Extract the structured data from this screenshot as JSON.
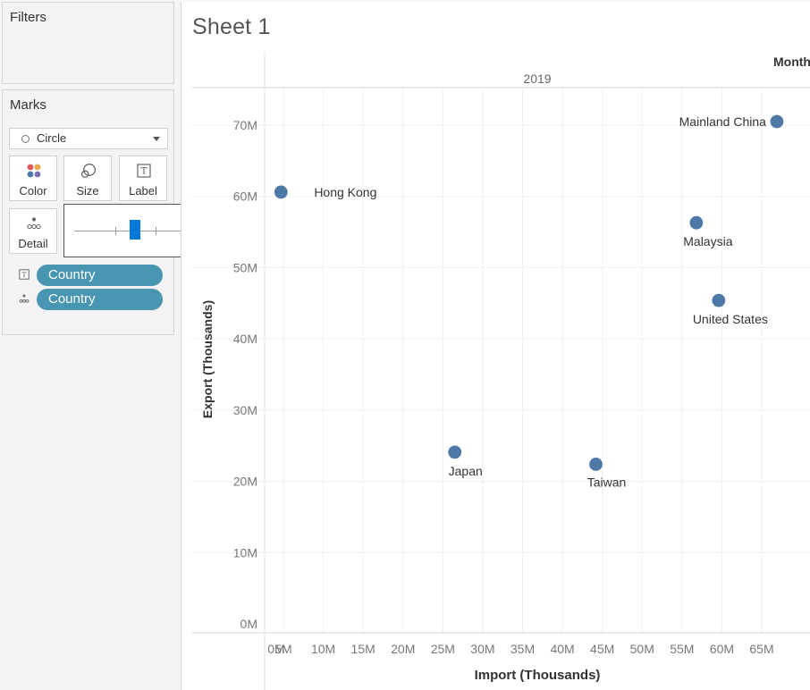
{
  "left_panel": {
    "filters": {
      "title": "Filters"
    },
    "marks": {
      "title": "Marks",
      "mark_type": {
        "value": "Circle",
        "icon": "circle-icon"
      },
      "buttons": [
        {
          "label": "Color",
          "icon": "color-dots-icon"
        },
        {
          "label": "Size",
          "icon": "size-circles-icon"
        },
        {
          "label": "Label",
          "icon": "text-label-icon"
        },
        {
          "label": "Detail",
          "icon": "detail-dots-icon"
        }
      ],
      "size_slider": {
        "level": 0.38
      },
      "fields": [
        {
          "encoding": "Label",
          "icon": "text-label-icon",
          "label": "Country"
        },
        {
          "encoding": "Detail",
          "icon": "detail-dots-icon",
          "label": "Country"
        }
      ]
    }
  },
  "sheet": {
    "title": "Sheet 1",
    "month_header": "Month",
    "year_header": "2019"
  },
  "colors": {
    "mark": "#4e79a7",
    "pill": "#4996b2",
    "slider": "#0078d7"
  },
  "chart_data": {
    "type": "scatter",
    "xlabel": "Import (Thousands)",
    "ylabel": "Export (Thousands)",
    "x_ticks": [
      "0M",
      "5M",
      "10M",
      "15M",
      "20M",
      "25M",
      "30M",
      "35M",
      "40M",
      "45M",
      "50M",
      "55M",
      "60M",
      "65M"
    ],
    "y_ticks": [
      "0M",
      "10M",
      "20M",
      "30M",
      "40M",
      "50M",
      "60M",
      "70M"
    ],
    "xlim": [
      0,
      70
    ],
    "ylim": [
      0,
      75
    ],
    "grid": true,
    "series": [
      {
        "points": [
          {
            "label": "Hong Kong",
            "x": 4.7,
            "y": 60.6
          },
          {
            "label": "Japan",
            "x": 26.5,
            "y": 24.1
          },
          {
            "label": "Taiwan",
            "x": 44.2,
            "y": 22.4
          },
          {
            "label": "Malaysia",
            "x": 56.8,
            "y": 56.3
          },
          {
            "label": "United States",
            "x": 59.6,
            "y": 45.4
          },
          {
            "label": "Mainland China",
            "x": 66.9,
            "y": 70.5
          }
        ]
      }
    ]
  }
}
